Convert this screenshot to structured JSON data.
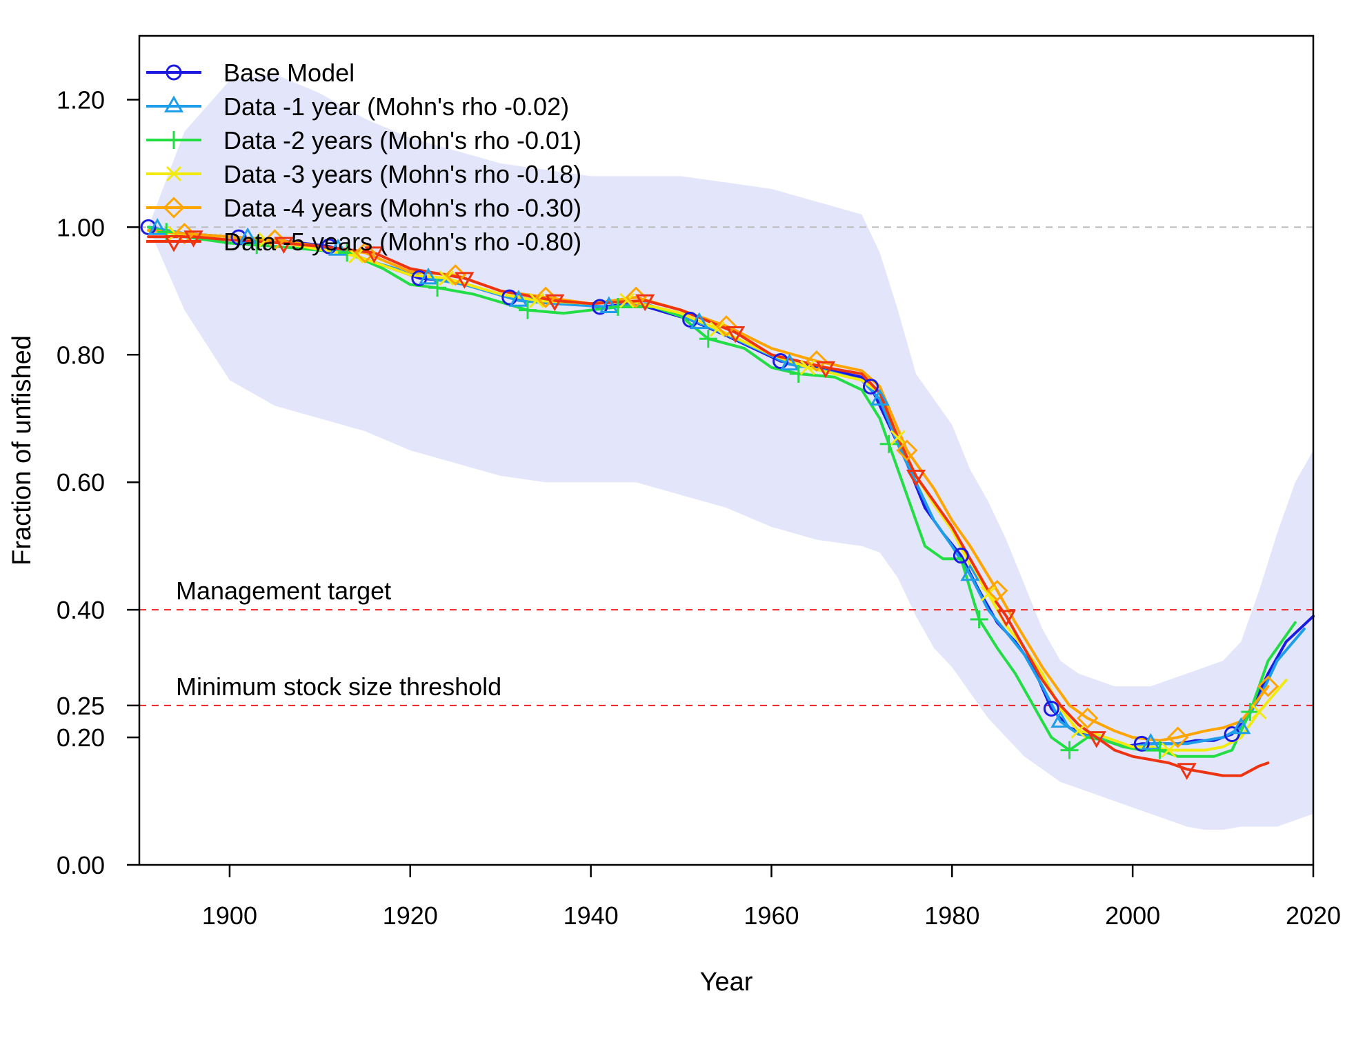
{
  "chart_data": {
    "type": "line",
    "xlabel": "Year",
    "ylabel": "Fraction of unfished",
    "xlim": [
      1890,
      2020
    ],
    "ylim": [
      0,
      1.3
    ],
    "x_ticks": [
      1900,
      1920,
      1940,
      1960,
      1980,
      2000,
      2020
    ],
    "x_tick_labels": [
      "1900",
      "1920",
      "1940",
      "1960",
      "1980",
      "2000",
      "2020"
    ],
    "y_ticks": [
      0,
      0.2,
      0.25,
      0.4,
      0.6,
      0.8,
      1.0,
      1.2
    ],
    "y_tick_labels": [
      "0.00",
      "0.20",
      "0.25",
      "0.40",
      "0.60",
      "0.80",
      "1.00",
      "1.20"
    ],
    "legend_position": "top-left",
    "reference_lines": [
      {
        "y": 1.0,
        "color": "#bbbbbb",
        "label": ""
      },
      {
        "y": 0.4,
        "color": "#ee2222",
        "label": "Management target"
      },
      {
        "y": 0.25,
        "color": "#ee2222",
        "label": "Minimum stock size threshold"
      }
    ],
    "band": {
      "color": "#e3e5fb",
      "x": [
        1891,
        1895,
        1900,
        1905,
        1910,
        1915,
        1920,
        1925,
        1930,
        1935,
        1940,
        1945,
        1950,
        1955,
        1960,
        1965,
        1970,
        1972,
        1974,
        1976,
        1978,
        1980,
        1982,
        1984,
        1986,
        1988,
        1990,
        1992,
        1994,
        1996,
        1998,
        2000,
        2002,
        2004,
        2006,
        2008,
        2010,
        2012,
        2014,
        2016,
        2018,
        2020
      ],
      "upper": [
        1.0,
        1.15,
        1.23,
        1.24,
        1.21,
        1.17,
        1.14,
        1.12,
        1.1,
        1.09,
        1.08,
        1.08,
        1.08,
        1.07,
        1.06,
        1.04,
        1.02,
        0.96,
        0.87,
        0.77,
        0.73,
        0.69,
        0.62,
        0.57,
        0.51,
        0.44,
        0.37,
        0.32,
        0.3,
        0.29,
        0.28,
        0.28,
        0.28,
        0.29,
        0.3,
        0.31,
        0.32,
        0.35,
        0.43,
        0.52,
        0.6,
        0.65
      ],
      "lower": [
        1.0,
        0.87,
        0.76,
        0.72,
        0.7,
        0.68,
        0.65,
        0.63,
        0.61,
        0.6,
        0.6,
        0.6,
        0.58,
        0.56,
        0.53,
        0.51,
        0.5,
        0.49,
        0.45,
        0.39,
        0.34,
        0.31,
        0.27,
        0.23,
        0.2,
        0.17,
        0.15,
        0.13,
        0.12,
        0.11,
        0.1,
        0.09,
        0.08,
        0.07,
        0.06,
        0.055,
        0.055,
        0.06,
        0.06,
        0.06,
        0.07,
        0.08
      ]
    },
    "series": [
      {
        "name": "Base Model",
        "color": "#1a1ae0",
        "marker": "circle",
        "x": [
          1891,
          1895,
          1900,
          1905,
          1911,
          1915,
          1921,
          1925,
          1931,
          1935,
          1941,
          1945,
          1951,
          1955,
          1961,
          1965,
          1970,
          1971,
          1973,
          1975,
          1977,
          1979,
          1981,
          1983,
          1985,
          1987,
          1989,
          1991,
          1993,
          1995,
          1997,
          1999,
          2001,
          2003,
          2005,
          2007,
          2009,
          2011,
          2013,
          2015,
          2017,
          2020
        ],
        "y": [
          1.0,
          0.99,
          0.985,
          0.98,
          0.97,
          0.95,
          0.92,
          0.915,
          0.89,
          0.885,
          0.875,
          0.88,
          0.855,
          0.83,
          0.79,
          0.78,
          0.765,
          0.75,
          0.69,
          0.63,
          0.56,
          0.52,
          0.485,
          0.43,
          0.38,
          0.35,
          0.31,
          0.245,
          0.215,
          0.205,
          0.195,
          0.185,
          0.19,
          0.19,
          0.19,
          0.195,
          0.195,
          0.205,
          0.24,
          0.3,
          0.35,
          0.39
        ],
        "marker_x": [
          1891,
          1901,
          1911,
          1921,
          1931,
          1941,
          1951,
          1961,
          1971,
          1981,
          1991,
          2001,
          2011
        ]
      },
      {
        "name": "Data -1 year (Mohn's rho -0.02)",
        "color": "#1e9ee8",
        "marker": "triangle",
        "x": [
          1891,
          1895,
          1900,
          1905,
          1912,
          1916,
          1922,
          1926,
          1932,
          1936,
          1942,
          1946,
          1952,
          1956,
          1962,
          1966,
          1970,
          1972,
          1974,
          1976,
          1978,
          1980,
          1982,
          1984,
          1986,
          1988,
          1990,
          1992,
          1994,
          1996,
          1998,
          2000,
          2002,
          2004,
          2006,
          2008,
          2010,
          2012,
          2014,
          2016,
          2019
        ],
        "y": [
          1.0,
          0.99,
          0.985,
          0.98,
          0.965,
          0.945,
          0.92,
          0.91,
          0.885,
          0.88,
          0.875,
          0.88,
          0.85,
          0.825,
          0.785,
          0.775,
          0.76,
          0.73,
          0.66,
          0.6,
          0.54,
          0.5,
          0.455,
          0.4,
          0.365,
          0.33,
          0.28,
          0.225,
          0.205,
          0.2,
          0.19,
          0.185,
          0.19,
          0.19,
          0.19,
          0.195,
          0.2,
          0.215,
          0.26,
          0.32,
          0.37
        ],
        "marker_x": [
          1892,
          1902,
          1912,
          1922,
          1932,
          1942,
          1952,
          1962,
          1972,
          1982,
          1992,
          2002,
          2012
        ]
      },
      {
        "name": "Data -2 years (Mohn's rho -0.01)",
        "color": "#22dd44",
        "marker": "plus",
        "x": [
          1891,
          1895,
          1900,
          1905,
          1913,
          1917,
          1920,
          1923,
          1927,
          1933,
          1937,
          1943,
          1947,
          1950,
          1953,
          1957,
          1960,
          1963,
          1967,
          1970,
          1972,
          1973,
          1975,
          1977,
          1979,
          1981,
          1983,
          1985,
          1987,
          1989,
          1991,
          1993,
          1995,
          1997,
          1999,
          2001,
          2003,
          2005,
          2007,
          2009,
          2011,
          2013,
          2015,
          2018
        ],
        "y": [
          1.0,
          0.985,
          0.975,
          0.97,
          0.96,
          0.935,
          0.91,
          0.905,
          0.895,
          0.87,
          0.865,
          0.875,
          0.875,
          0.86,
          0.825,
          0.81,
          0.78,
          0.77,
          0.765,
          0.745,
          0.7,
          0.66,
          0.58,
          0.5,
          0.48,
          0.48,
          0.385,
          0.34,
          0.3,
          0.25,
          0.2,
          0.18,
          0.2,
          0.195,
          0.185,
          0.18,
          0.18,
          0.17,
          0.17,
          0.17,
          0.18,
          0.24,
          0.32,
          0.38
        ],
        "marker_x": [
          1893,
          1903,
          1913,
          1923,
          1933,
          1943,
          1953,
          1963,
          1973,
          1983,
          1993,
          2003,
          2013
        ]
      },
      {
        "name": "Data -3 years (Mohn's rho -0.18)",
        "color": "#f2ea0f",
        "marker": "x",
        "x": [
          1891,
          1894,
          1900,
          1904,
          1910,
          1914,
          1920,
          1924,
          1930,
          1934,
          1940,
          1944,
          1950,
          1954,
          1960,
          1964,
          1970,
          1972,
          1974,
          1976,
          1978,
          1980,
          1982,
          1984,
          1986,
          1988,
          1990,
          1992,
          1994,
          1996,
          1998,
          2000,
          2002,
          2004,
          2006,
          2008,
          2010,
          2012,
          2014,
          2017
        ],
        "y": [
          0.995,
          0.99,
          0.985,
          0.98,
          0.965,
          0.955,
          0.925,
          0.92,
          0.895,
          0.885,
          0.88,
          0.885,
          0.865,
          0.84,
          0.8,
          0.78,
          0.76,
          0.74,
          0.67,
          0.61,
          0.565,
          0.525,
          0.47,
          0.425,
          0.375,
          0.34,
          0.3,
          0.245,
          0.21,
          0.205,
          0.195,
          0.185,
          0.185,
          0.18,
          0.18,
          0.18,
          0.185,
          0.2,
          0.24,
          0.29
        ],
        "marker_x": [
          1894,
          1904,
          1914,
          1924,
          1934,
          1944,
          1954,
          1964,
          1974,
          1984,
          1994,
          2004,
          2014
        ]
      },
      {
        "name": "Data -4 years (Mohn's rho -0.30)",
        "color": "#ffa500",
        "marker": "diamond",
        "x": [
          1891,
          1895,
          1900,
          1905,
          1910,
          1915,
          1920,
          1925,
          1930,
          1935,
          1940,
          1945,
          1950,
          1955,
          1960,
          1965,
          1970,
          1972,
          1975,
          1978,
          1980,
          1982,
          1985,
          1987,
          1990,
          1993,
          1995,
          1998,
          2000,
          2003,
          2005,
          2008,
          2010,
          2012,
          2015
        ],
        "y": [
          0.995,
          0.99,
          0.985,
          0.98,
          0.97,
          0.96,
          0.93,
          0.925,
          0.9,
          0.89,
          0.88,
          0.89,
          0.87,
          0.845,
          0.81,
          0.79,
          0.775,
          0.75,
          0.65,
          0.59,
          0.54,
          0.5,
          0.43,
          0.38,
          0.31,
          0.25,
          0.23,
          0.21,
          0.2,
          0.195,
          0.2,
          0.21,
          0.215,
          0.225,
          0.28
        ],
        "marker_x": [
          1895,
          1905,
          1915,
          1925,
          1935,
          1945,
          1955,
          1965,
          1975,
          1985,
          1995,
          2005,
          2015
        ]
      },
      {
        "name": "Data -5 years (Mohn's rho -0.80)",
        "color": "#ee3311",
        "marker": "triangle-down",
        "x": [
          1891,
          1896,
          1900,
          1906,
          1910,
          1916,
          1920,
          1926,
          1930,
          1936,
          1940,
          1946,
          1950,
          1956,
          1960,
          1966,
          1970,
          1972,
          1974,
          1976,
          1978,
          1980,
          1982,
          1984,
          1986,
          1988,
          1990,
          1992,
          1994,
          1996,
          1998,
          2000,
          2002,
          2004,
          2006,
          2008,
          2010,
          2012,
          2014,
          2015
        ],
        "y": [
          0.985,
          0.985,
          0.98,
          0.975,
          0.97,
          0.96,
          0.935,
          0.92,
          0.9,
          0.885,
          0.88,
          0.885,
          0.87,
          0.835,
          0.8,
          0.78,
          0.77,
          0.74,
          0.67,
          0.61,
          0.57,
          0.53,
          0.48,
          0.43,
          0.39,
          0.34,
          0.29,
          0.25,
          0.22,
          0.2,
          0.18,
          0.17,
          0.165,
          0.16,
          0.15,
          0.145,
          0.14,
          0.14,
          0.155,
          0.16
        ],
        "marker_x": [
          1896,
          1906,
          1916,
          1926,
          1936,
          1946,
          1956,
          1966,
          1976,
          1986,
          1996,
          2006
        ]
      }
    ]
  }
}
